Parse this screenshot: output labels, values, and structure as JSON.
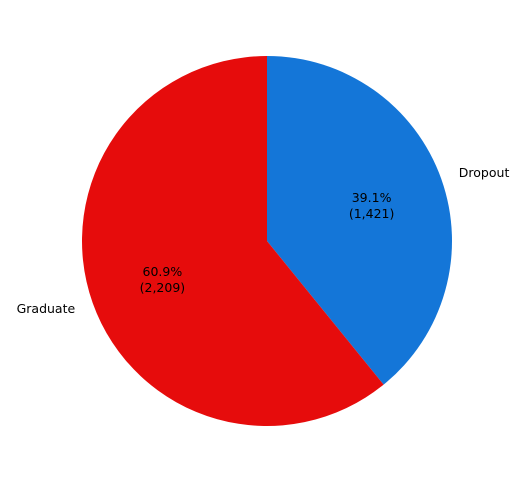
{
  "chart_data": {
    "type": "pie",
    "title": "",
    "categories": [
      "Dropout",
      "Graduate"
    ],
    "values": [
      1421,
      2209
    ],
    "percentages": [
      39.1,
      60.9
    ],
    "value_labels": [
      "39.1%\n(1,421)",
      "60.9%\n(2,209)"
    ],
    "colors": [
      "#1476d8",
      "#e60c0c"
    ],
    "start_angle_deg": 90,
    "direction": "clockwise",
    "legend": "none"
  }
}
